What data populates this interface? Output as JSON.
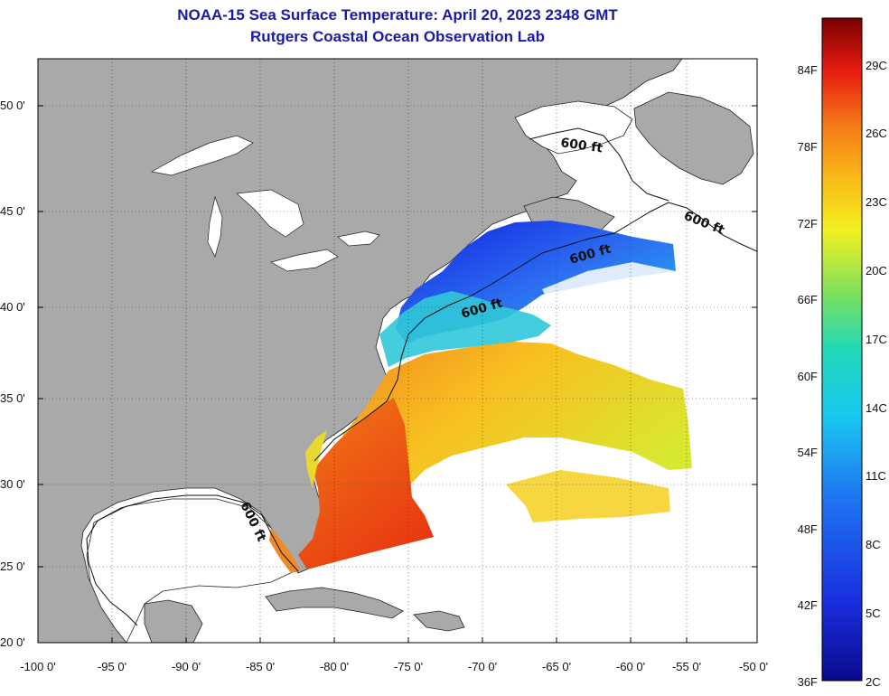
{
  "title": {
    "line1": "NOAA-15 Sea Surface Temperature:  April 20, 2023 2348 GMT",
    "line2": "Rutgers Coastal Ocean Observation Lab"
  },
  "axes": {
    "lat_labels": [
      "50 0'",
      "45 0'",
      "40 0'",
      "35 0'",
      "30 0'",
      "25 0'",
      "20 0'"
    ],
    "lon_labels": [
      "-100 0'",
      "-95 0'",
      "-90 0'",
      "-85 0'",
      "-80 0'",
      "-75 0'",
      "-70 0'",
      "-65 0'",
      "-60 0'",
      "-55 0'",
      "-50 0'"
    ]
  },
  "contour_label": "600 ft",
  "colorbar": {
    "fahrenheit": [
      "84F",
      "78F",
      "72F",
      "66F",
      "60F",
      "54F",
      "48F",
      "42F",
      "36F"
    ],
    "celsius": [
      "29C",
      "26C",
      "23C",
      "20C",
      "17C",
      "14C",
      "11C",
      "8C",
      "5C",
      "2C"
    ]
  },
  "colors": {
    "land": "#a9a9a9",
    "title": "#1a1aa6",
    "no_data": "#ffffff"
  }
}
